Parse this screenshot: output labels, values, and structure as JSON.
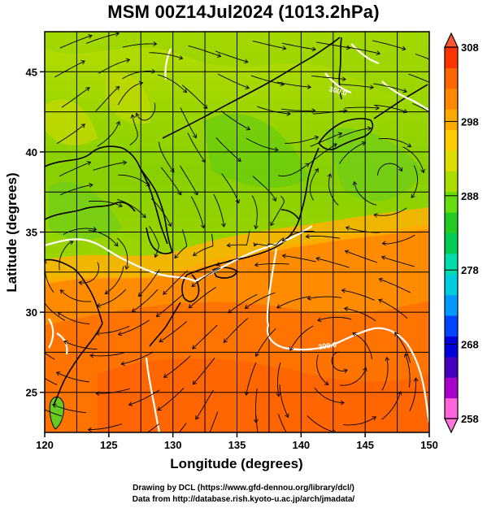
{
  "title": "MSM 00Z14Jul2024 (1013.2hPa)",
  "x_axis": {
    "label": "Longitude (degrees)",
    "ticks": [
      120,
      125,
      130,
      135,
      140,
      145,
      150
    ],
    "range": [
      120,
      150
    ]
  },
  "y_axis": {
    "label": "Latitude  (degrees)",
    "ticks": [
      25,
      30,
      35,
      40,
      45
    ],
    "range": [
      22.5,
      47.5
    ]
  },
  "colorbar": {
    "min": 258,
    "max": 308,
    "tick_labels": [
      "308",
      "298",
      "288",
      "278",
      "268",
      "258"
    ],
    "tick_values": [
      308,
      298,
      288,
      278,
      268,
      258
    ],
    "colors": [
      "#ff66dd",
      "#aa00cc",
      "#4400bb",
      "#0000dd",
      "#0044ff",
      "#0099ff",
      "#00ccdd",
      "#00ddaa",
      "#00cc55",
      "#22cc22",
      "#66dd11",
      "#aadd00",
      "#dddd00",
      "#ffcc00",
      "#ffaa00",
      "#ff8800",
      "#ff6600",
      "#ff3300"
    ]
  },
  "contour_labels": [
    "300.0",
    "300.0"
  ],
  "footer": {
    "line1": "Drawing by DCL (https://www.gfd‐dennou.org/library/dcl/)",
    "line2": "Data from http://database.rish.kyoto‐u.ac.jp/arch/jmadata/"
  }
}
